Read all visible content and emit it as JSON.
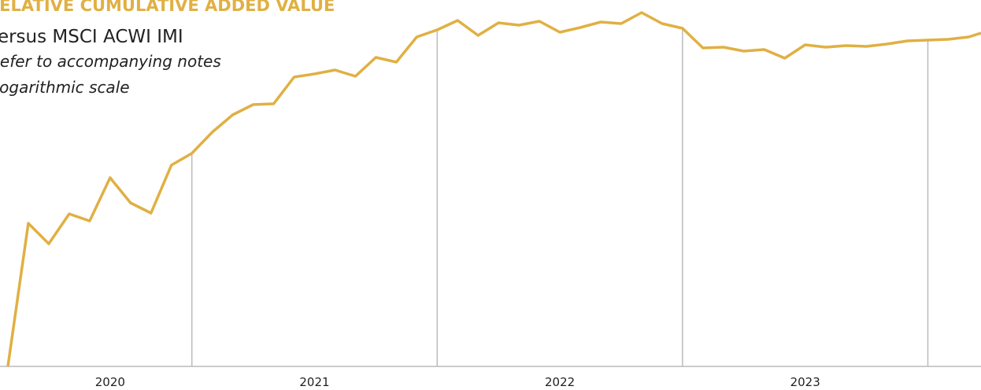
{
  "chart_data": {
    "type": "line",
    "title": "RELATIVE CUMULATIVE ADDED VALUE",
    "subtitle": "Versus MSCI ACWI IMI",
    "notes": [
      "Refer to accompanying notes",
      "Logarithmic scale"
    ],
    "log_scale": true,
    "color": "#e0b043",
    "x": [
      0,
      1,
      2,
      3,
      4,
      5,
      6,
      7,
      8,
      9,
      10,
      11,
      12,
      13,
      14,
      15,
      16,
      17,
      18,
      19,
      20,
      21,
      22,
      23,
      24,
      25,
      26,
      27,
      28,
      29,
      30,
      31,
      32,
      33,
      34,
      35,
      36,
      37,
      38,
      39,
      40,
      41,
      42,
      43,
      44,
      45,
      46,
      47,
      47.6
    ],
    "values": [
      0,
      182,
      156,
      194,
      185,
      240,
      208,
      195,
      256,
      271,
      298,
      320,
      333,
      334,
      368,
      372,
      377,
      369,
      393,
      387,
      419,
      428,
      440,
      421,
      437,
      434,
      439,
      425,
      431,
      438,
      436,
      450,
      436,
      430,
      405,
      406,
      401,
      403,
      392,
      409,
      406,
      408,
      407,
      410,
      414,
      415,
      416,
      419,
      424
    ],
    "xlim": [
      0,
      47.6
    ],
    "ylim": [
      0,
      456
    ],
    "xticks": [
      {
        "value": 5,
        "label": "2020"
      },
      {
        "value": 15,
        "label": "2021"
      },
      {
        "value": 27,
        "label": "2022"
      },
      {
        "value": 39,
        "label": "2023"
      }
    ],
    "xgrid": [
      9,
      21,
      33,
      45
    ]
  }
}
